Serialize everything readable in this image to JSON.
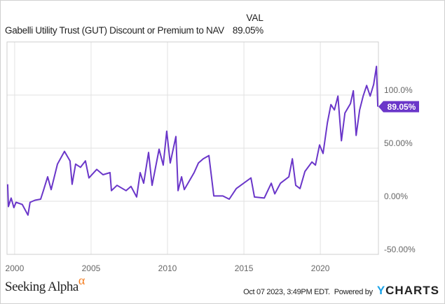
{
  "header": {
    "val_heading": "VAL",
    "series_name": "Gabelli Utility Trust (GUT) Discount or Premium to NAV",
    "series_value": "89.05%"
  },
  "colors": {
    "series": "#6a36c9",
    "grid": "#e2e2e2",
    "accent_logo": "#f47d20",
    "ycharts_y": "#1aa3e8"
  },
  "chart_data": {
    "type": "line",
    "title": "Gabelli Utility Trust (GUT) Discount or Premium to NAV",
    "xlabel": "",
    "ylabel": "",
    "xlim": [
      1999.5,
      2023.8
    ],
    "ylim": [
      -50,
      150
    ],
    "grid": true,
    "x_ticks": [
      2000,
      2005,
      2010,
      2015,
      2020
    ],
    "x_tick_labels": [
      "2000",
      "2005",
      "2010",
      "2015",
      "2020"
    ],
    "y_ticks": [
      100,
      50,
      0,
      -50
    ],
    "y_tick_labels": [
      "100.0%",
      "50.00%",
      "0.00%",
      "-50.00%"
    ],
    "last_value_label": "89.05%",
    "series": [
      {
        "name": "GUT Discount or Premium to NAV",
        "x": [
          1999.54,
          1999.59,
          1999.77,
          1999.95,
          2000.09,
          2000.5,
          2000.87,
          2001.01,
          2001.33,
          2001.7,
          2001.88,
          2002.16,
          2002.39,
          2002.8,
          2003.26,
          2003.62,
          2003.76,
          2003.99,
          2004.31,
          2004.63,
          2004.86,
          2005.37,
          2005.78,
          2006.24,
          2006.33,
          2006.7,
          2007.29,
          2007.61,
          2007.98,
          2008.21,
          2008.44,
          2008.76,
          2008.99,
          2009.45,
          2009.72,
          2009.95,
          2010.18,
          2010.55,
          2010.69,
          2010.92,
          2011.1,
          2011.74,
          2012.02,
          2012.34,
          2012.71,
          2013.03,
          2013.62,
          2014.04,
          2014.5,
          2015.46,
          2015.69,
          2016.33,
          2016.79,
          2017.02,
          2017.39,
          2017.94,
          2018.17,
          2018.39,
          2018.67,
          2018.99,
          2019.45,
          2019.68,
          2019.95,
          2020.18,
          2020.46,
          2020.69,
          2020.92,
          2021.15,
          2021.38,
          2021.61,
          2021.97,
          2022.16,
          2022.34,
          2022.57,
          2022.8,
          2023.03,
          2023.26,
          2023.49,
          2023.67,
          2023.76
        ],
        "y": [
          16,
          -5,
          3,
          -6,
          -1,
          -3,
          -13,
          -1,
          1,
          2,
          10,
          23,
          11,
          35,
          47,
          38,
          16,
          35,
          32,
          38,
          22,
          30,
          25,
          27,
          10,
          15,
          10,
          14,
          4,
          27,
          17,
          46,
          15,
          49,
          34,
          66,
          36,
          61,
          10,
          23,
          11,
          27,
          36,
          40,
          43,
          5,
          5,
          2,
          12,
          22,
          4,
          3,
          17,
          7,
          17,
          23,
          40,
          15,
          12,
          28,
          37,
          34,
          53,
          45,
          74,
          91,
          86,
          99,
          57,
          83,
          92,
          104,
          62,
          86,
          99,
          109,
          99,
          110,
          127,
          89.05
        ]
      }
    ]
  },
  "footer": {
    "brand": "Seeking Alpha",
    "brand_symbol": "α",
    "timestamp": "Oct 07 2023, 3:49PM EDT.",
    "powered_by": "Powered by",
    "ycharts_y": "Y",
    "ycharts_rest": "CHARTS"
  }
}
